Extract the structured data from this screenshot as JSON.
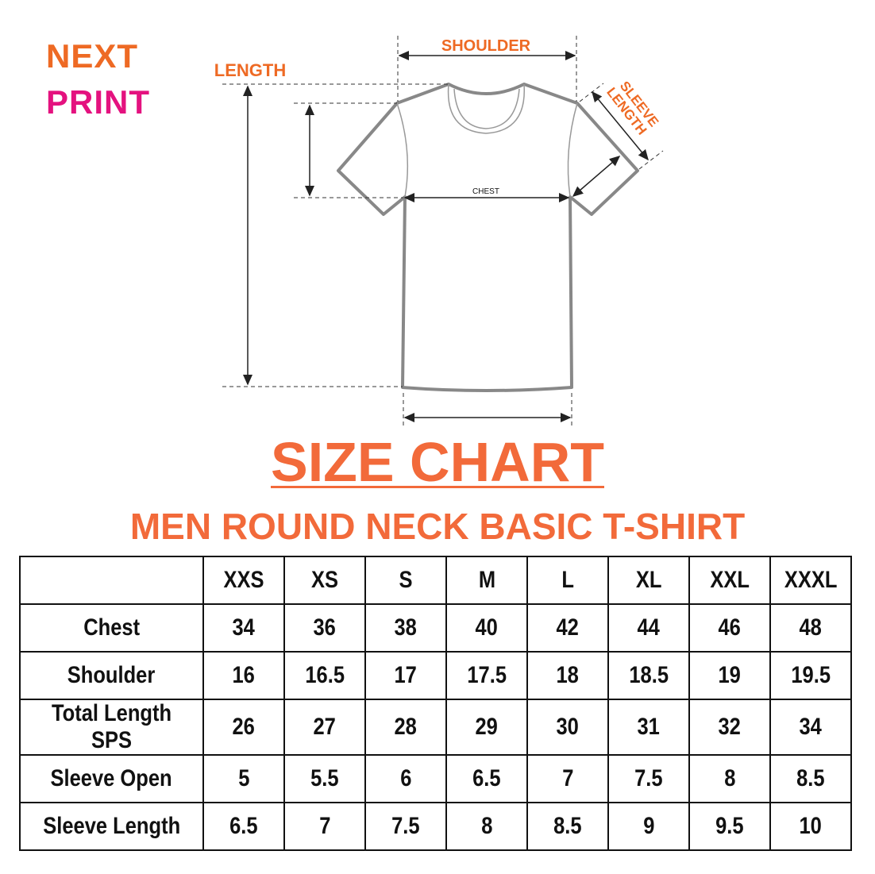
{
  "logo": {
    "line1": "NEXT",
    "line2": "PRINT",
    "colors": {
      "orange": "#ee6a24",
      "pink": "#e4127f"
    }
  },
  "diagram": {
    "shoulder_label": "SHOULDER",
    "length_label": "LENGTH",
    "sleeve_label_1": "SLEEVE",
    "sleeve_label_2": "LENGTH",
    "chest_label": "CHEST"
  },
  "title": "SIZE CHART",
  "subtitle": "MEN ROUND NECK BASIC T-SHIRT",
  "accent_color": "#f26a3a",
  "table": {
    "sizes": [
      "XXS",
      "XS",
      "S",
      "M",
      "L",
      "XL",
      "XXL",
      "XXXL"
    ],
    "rows": [
      {
        "label": "Chest",
        "values": [
          "34",
          "36",
          "38",
          "40",
          "42",
          "44",
          "46",
          "48"
        ]
      },
      {
        "label": "Shoulder",
        "values": [
          "16",
          "16.5",
          "17",
          "17.5",
          "18",
          "18.5",
          "19",
          "19.5"
        ]
      },
      {
        "label": "Total Length SPS",
        "values": [
          "26",
          "27",
          "28",
          "29",
          "30",
          "31",
          "32",
          "34"
        ]
      },
      {
        "label": "Sleeve Open",
        "values": [
          "5",
          "5.5",
          "6",
          "6.5",
          "7",
          "7.5",
          "8",
          "8.5"
        ]
      },
      {
        "label": "Sleeve Length",
        "values": [
          "6.5",
          "7",
          "7.5",
          "8",
          "8.5",
          "9",
          "9.5",
          "10"
        ]
      }
    ]
  }
}
